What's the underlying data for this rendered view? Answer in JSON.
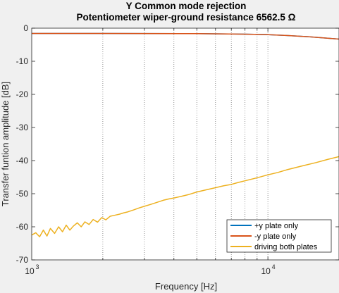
{
  "chart_data": {
    "type": "line",
    "title": "Y Common mode rejection",
    "subtitle": "Potentiometer wiper-ground resistance 6562.5 Ω",
    "xlabel": "Frequency [Hz]",
    "ylabel": "Transfer funtion amplitude [dB]",
    "xscale": "log",
    "xlim": [
      1000,
      20000
    ],
    "ylim": [
      -70,
      0
    ],
    "x_ticks": [
      1000,
      10000
    ],
    "x_tick_labels": [
      {
        "base": "10",
        "exp": "3"
      },
      {
        "base": "10",
        "exp": "4"
      }
    ],
    "y_ticks": [
      0,
      -10,
      -20,
      -30,
      -40,
      -50,
      -60,
      -70
    ],
    "y_tick_labels": [
      "0",
      "-10",
      "-20",
      "-30",
      "-40",
      "-50",
      "-60",
      "-70"
    ],
    "grid": "x-minor-dotted",
    "legend_position": "bottom-right",
    "series": [
      {
        "name": "+y plate only",
        "color": "#0072bd",
        "x": [
          1000,
          2000,
          5000,
          8000,
          10000,
          12000,
          15000,
          20000
        ],
        "y": [
          -1.6,
          -1.6,
          -1.65,
          -1.8,
          -1.95,
          -2.2,
          -2.6,
          -3.3
        ]
      },
      {
        "name": "-y plate only",
        "color": "#d95319",
        "x": [
          1000,
          2000,
          5000,
          8000,
          10000,
          12000,
          15000,
          20000
        ],
        "y": [
          -1.6,
          -1.6,
          -1.65,
          -1.8,
          -1.95,
          -2.2,
          -2.6,
          -3.3
        ]
      },
      {
        "name": "driving both plates",
        "color": "#edb120",
        "x": [
          1000,
          1040,
          1080,
          1120,
          1160,
          1200,
          1250,
          1300,
          1350,
          1400,
          1450,
          1500,
          1560,
          1620,
          1680,
          1750,
          1820,
          1900,
          1980,
          2060,
          2150,
          2250,
          2350,
          2450,
          2550,
          2700,
          2850,
          3000,
          3200,
          3400,
          3600,
          3800,
          4000,
          4300,
          4600,
          5000,
          5500,
          6000,
          6500,
          7000,
          7500,
          8000,
          9000,
          10000,
          11000,
          12000,
          14000,
          16000,
          18000,
          20000
        ],
        "y": [
          -62.5,
          -61.8,
          -63.0,
          -61.0,
          -62.8,
          -60.5,
          -62.0,
          -60.0,
          -61.5,
          -59.5,
          -61.0,
          -59.8,
          -58.8,
          -60.0,
          -58.5,
          -59.3,
          -57.8,
          -58.6,
          -57.2,
          -57.9,
          -56.8,
          -56.5,
          -56.2,
          -55.8,
          -55.5,
          -54.9,
          -54.3,
          -53.8,
          -53.2,
          -52.6,
          -52.0,
          -51.6,
          -51.3,
          -50.8,
          -50.3,
          -49.5,
          -48.8,
          -48.2,
          -47.6,
          -47.2,
          -46.6,
          -46.1,
          -45.2,
          -44.3,
          -43.6,
          -42.8,
          -41.6,
          -40.6,
          -39.6,
          -38.8
        ]
      }
    ]
  }
}
